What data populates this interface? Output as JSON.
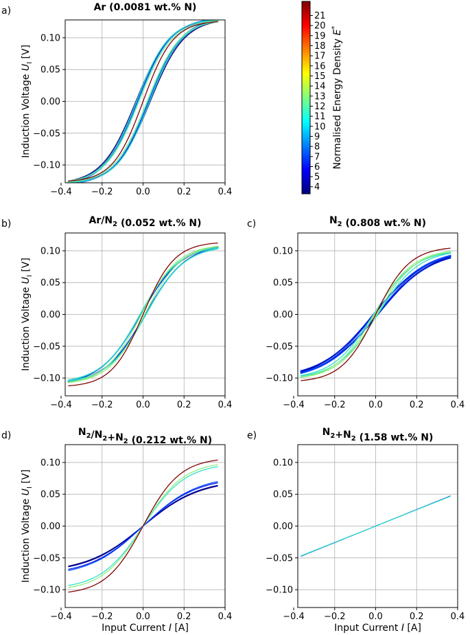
{
  "chart_data": [
    {
      "panel_label": "a)",
      "type": "line",
      "title": "Ar (0.0081 wt.% N)",
      "xlabel": "",
      "ylabel": "Induction Voltage U_I [V]",
      "xlim": [
        -0.38,
        0.4
      ],
      "ylim": [
        -0.128,
        0.128
      ],
      "xticks": [
        "−0.4",
        "−0.2",
        "0.0",
        "0.2",
        "0.4"
      ],
      "yticks": [
        "−0.10",
        "−0.05",
        "0.00",
        "0.05",
        "0.10"
      ],
      "xtick_values": [
        -0.4,
        -0.2,
        0.0,
        0.2,
        0.4
      ],
      "ytick_values": [
        -0.1,
        -0.05,
        0.0,
        0.05,
        0.1
      ],
      "grid": true,
      "series": [
        {
          "name": "E* = 4",
          "color": "#0a0a78",
          "amp": 0.128,
          "k": 6.0,
          "shift": 0.035
        },
        {
          "name": "E* = 5",
          "color": "#0000aa",
          "amp": 0.129,
          "k": 6.0,
          "shift": 0.03
        },
        {
          "name": "E* = 7",
          "color": "#0033e6",
          "amp": 0.13,
          "k": 6.0,
          "shift": 0.028
        },
        {
          "name": "E* = 8",
          "color": "#1a88e8",
          "amp": 0.13,
          "k": 6.1,
          "shift": 0.025
        },
        {
          "name": "E* = 11",
          "color": "#33e0c8",
          "amp": 0.128,
          "k": 6.3,
          "shift": 0.032
        },
        {
          "name": "E* = 12",
          "color": "#66f0a0",
          "amp": 0.127,
          "k": 6.2,
          "shift": 0.02
        },
        {
          "name": "E* = 22",
          "color": "#800000",
          "amp": 0.126,
          "k": 6.8,
          "shift": 0.0
        }
      ]
    },
    {
      "panel_label": "b)",
      "type": "line",
      "title": "Ar/N2 (0.052 wt.% N)",
      "xlabel": "",
      "ylabel": "Induction Voltage U_I [V]",
      "xlim": [
        -0.38,
        0.4
      ],
      "ylim": [
        -0.128,
        0.128
      ],
      "xticks": [
        "−0.4",
        "−0.2",
        "0.0",
        "0.2",
        "0.4"
      ],
      "yticks": [
        "−0.10",
        "−0.05",
        "0.00",
        "0.05",
        "0.10"
      ],
      "xtick_values": [
        -0.4,
        -0.2,
        0.0,
        0.2,
        0.4
      ],
      "ytick_values": [
        -0.1,
        -0.05,
        0.0,
        0.05,
        0.1
      ],
      "grid": true,
      "series": [
        {
          "name": "E* = 4",
          "color": "#0a0a78",
          "amp": 0.108,
          "k": 5.0,
          "shift": 0.012
        },
        {
          "name": "E* = 6",
          "color": "#0022dd",
          "amp": 0.107,
          "k": 5.0,
          "shift": 0.01
        },
        {
          "name": "E* = 9",
          "color": "#1a88e8",
          "amp": 0.106,
          "k": 5.2,
          "shift": 0.012
        },
        {
          "name": "E* = 11",
          "color": "#33e0c8",
          "amp": 0.105,
          "k": 5.3,
          "shift": 0.015
        },
        {
          "name": "E* = 13",
          "color": "#88f080",
          "amp": 0.108,
          "k": 5.6,
          "shift": 0.008
        },
        {
          "name": "E* = 22",
          "color": "#800000",
          "amp": 0.113,
          "k": 6.5,
          "shift": 0.0
        }
      ]
    },
    {
      "panel_label": "c)",
      "type": "line",
      "title": "N2 (0.808 wt.% N)",
      "xlabel": "",
      "ylabel": "",
      "xlim": [
        -0.38,
        0.4
      ],
      "ylim": [
        -0.128,
        0.128
      ],
      "xticks": [
        "−0.4",
        "−0.2",
        "0.0",
        "0.2",
        "0.4"
      ],
      "yticks": [
        "−0.10",
        "−0.05",
        "0.00",
        "0.05",
        "0.10"
      ],
      "xtick_values": [
        -0.4,
        -0.2,
        0.0,
        0.2,
        0.4
      ],
      "ytick_values": [
        -0.1,
        -0.05,
        0.0,
        0.05,
        0.1
      ],
      "grid": true,
      "series": [
        {
          "name": "E* = 4",
          "color": "#0a0a78",
          "amp": 0.094,
          "k": 3.8,
          "shift": 0.01
        },
        {
          "name": "E* = 5",
          "color": "#0000aa",
          "amp": 0.093,
          "k": 3.8,
          "shift": 0.008
        },
        {
          "name": "E* = 6",
          "color": "#0022dd",
          "amp": 0.092,
          "k": 3.9,
          "shift": 0.012
        },
        {
          "name": "E* = 7",
          "color": "#0044ff",
          "amp": 0.095,
          "k": 3.9,
          "shift": 0.006
        },
        {
          "name": "E* = 11",
          "color": "#33e0c8",
          "amp": 0.098,
          "k": 5.0,
          "shift": 0.01
        },
        {
          "name": "E* = 13",
          "color": "#88f080",
          "amp": 0.1,
          "k": 5.3,
          "shift": 0.006
        },
        {
          "name": "E* = 22",
          "color": "#800000",
          "amp": 0.105,
          "k": 6.0,
          "shift": 0.0
        }
      ]
    },
    {
      "panel_label": "d)",
      "type": "line",
      "title": "N2/N2+N2 (0.212 wt.% N)",
      "xlabel": "Input Current I [A]",
      "ylabel": "Induction Voltage U_I [V]",
      "xlim": [
        -0.38,
        0.4
      ],
      "ylim": [
        -0.128,
        0.128
      ],
      "xticks": [
        "−0.4",
        "−0.2",
        "0.0",
        "0.2",
        "0.4"
      ],
      "yticks": [
        "−0.10",
        "−0.05",
        "0.00",
        "0.05",
        "0.10"
      ],
      "xtick_values": [
        -0.4,
        -0.2,
        0.0,
        0.2,
        0.4
      ],
      "ytick_values": [
        -0.1,
        -0.05,
        0.0,
        0.05,
        0.1
      ],
      "grid": true,
      "series": [
        {
          "name": "E* = 4",
          "color": "#0a0a78",
          "amp": 0.065,
          "k": 3.6,
          "shift": 0.0
        },
        {
          "name": "E* = 5",
          "color": "#0000aa",
          "amp": 0.066,
          "k": 3.7,
          "shift": 0.0
        },
        {
          "name": "E* = 6",
          "color": "#0022dd",
          "amp": 0.07,
          "k": 3.8,
          "shift": 0.0
        },
        {
          "name": "E* = 7",
          "color": "#0044ff",
          "amp": 0.072,
          "k": 3.8,
          "shift": 0.0
        },
        {
          "name": "E* = 11",
          "color": "#33e0c8",
          "amp": 0.095,
          "k": 4.8,
          "shift": 0.0
        },
        {
          "name": "E* = 13",
          "color": "#88f080",
          "amp": 0.098,
          "k": 5.0,
          "shift": 0.0
        },
        {
          "name": "E* = 22",
          "color": "#800000",
          "amp": 0.105,
          "k": 5.5,
          "shift": 0.0
        }
      ]
    },
    {
      "panel_label": "e)",
      "type": "line",
      "title": "N2+N2 (1.58 wt.% N)",
      "xlabel": "Input Current I [A]",
      "ylabel": "",
      "xlim": [
        -0.38,
        0.4
      ],
      "ylim": [
        -0.128,
        0.128
      ],
      "xticks": [
        "−0.4",
        "−0.2",
        "0.0",
        "0.2",
        "0.4"
      ],
      "yticks": [
        "−0.10",
        "−0.05",
        "0.00",
        "0.05",
        "0.10"
      ],
      "xtick_values": [
        -0.4,
        -0.2,
        0.0,
        0.2,
        0.4
      ],
      "ytick_values": [
        -0.1,
        -0.05,
        0.0,
        0.05,
        0.1
      ],
      "grid": true,
      "series": [
        {
          "name": "E* = 4",
          "color": "#0022dd",
          "amp": 0.048,
          "k": 0.0,
          "shift": 0.0
        },
        {
          "name": "E* = 11",
          "color": "#33e0c8",
          "amp": 0.0475,
          "k": 0.0,
          "shift": 0.0
        }
      ]
    }
  ],
  "colorbar": {
    "label": "Normalised Energy Density E*",
    "ticks": [
      "4",
      "5",
      "6",
      "7",
      "8",
      "9",
      "10",
      "11",
      "12",
      "13",
      "14",
      "15",
      "16",
      "17",
      "18",
      "19",
      "20",
      "21"
    ],
    "tick_values": [
      4,
      5,
      6,
      7,
      8,
      9,
      10,
      11,
      12,
      13,
      14,
      15,
      16,
      17,
      18,
      19,
      20,
      21
    ],
    "range": [
      3.3,
      22.4
    ],
    "colormap": "jet",
    "colormap_stops": [
      "#000080",
      "#0000ff",
      "#0080ff",
      "#00ffff",
      "#80ff80",
      "#ffff00",
      "#ff8000",
      "#ff0000",
      "#800000"
    ]
  }
}
